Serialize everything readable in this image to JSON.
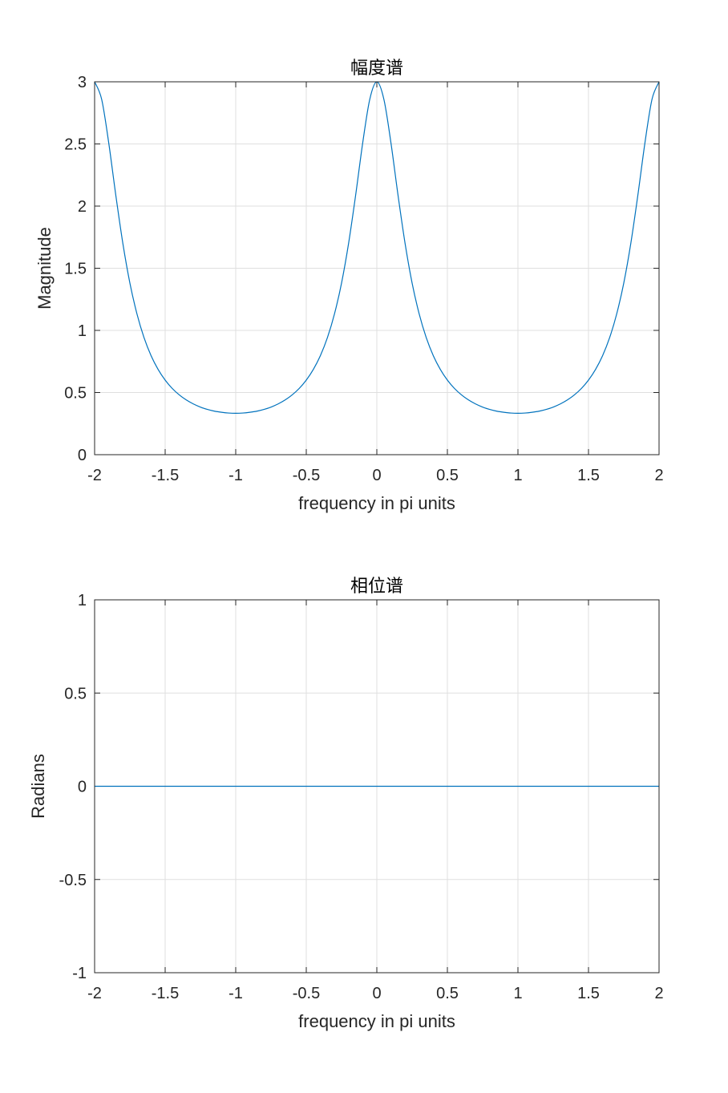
{
  "chart_data": [
    {
      "type": "line",
      "title": "幅度谱",
      "xlabel": "frequency in pi units",
      "ylabel": "Magnitude",
      "xlim": [
        -2,
        2
      ],
      "ylim": [
        0,
        3
      ],
      "xticks": [
        "-2",
        "-1.5",
        "-1",
        "-0.5",
        "0",
        "0.5",
        "1",
        "1.5",
        "2"
      ],
      "yticks": [
        "0",
        "0.5",
        "1",
        "1.5",
        "2",
        "2.5",
        "3"
      ],
      "grid": true,
      "line_color": "#0072BD",
      "x": [
        -2,
        -1.95,
        -1.9,
        -1.85,
        -1.8,
        -1.75,
        -1.7,
        -1.65,
        -1.6,
        -1.55,
        -1.5,
        -1.45,
        -1.4,
        -1.35,
        -1.3,
        -1.25,
        -1.2,
        -1.15,
        -1.1,
        -1.05,
        -1,
        -0.95,
        -0.9,
        -0.85,
        -0.8,
        -0.75,
        -0.7,
        -0.65,
        -0.6,
        -0.55,
        -0.5,
        -0.45,
        -0.4,
        -0.35,
        -0.3,
        -0.25,
        -0.2,
        -0.15,
        -0.1,
        -0.05,
        0,
        0.05,
        0.1,
        0.15,
        0.2,
        0.25,
        0.3,
        0.35,
        0.4,
        0.45,
        0.5,
        0.55,
        0.6,
        0.65,
        0.7,
        0.75,
        0.8,
        0.85,
        0.9,
        0.95,
        1,
        1.05,
        1.1,
        1.15,
        1.2,
        1.25,
        1.3,
        1.35,
        1.4,
        1.45,
        1.5,
        1.55,
        1.6,
        1.65,
        1.7,
        1.75,
        1.8,
        1.85,
        1.9,
        1.95,
        2
      ],
      "y": [
        3,
        2.859,
        2.509,
        2.089,
        1.701,
        1.381,
        1.133,
        0.942,
        0.797,
        0.686,
        0.6,
        0.533,
        0.481,
        0.44,
        0.408,
        0.383,
        0.364,
        0.35,
        0.341,
        0.335,
        0.333,
        0.335,
        0.341,
        0.35,
        0.364,
        0.383,
        0.408,
        0.44,
        0.481,
        0.533,
        0.6,
        0.686,
        0.797,
        0.942,
        1.133,
        1.381,
        1.701,
        2.089,
        2.509,
        2.859,
        3,
        2.859,
        2.509,
        2.089,
        1.701,
        1.381,
        1.133,
        0.942,
        0.797,
        0.686,
        0.6,
        0.533,
        0.481,
        0.44,
        0.408,
        0.383,
        0.364,
        0.35,
        0.341,
        0.335,
        0.333,
        0.335,
        0.341,
        0.35,
        0.364,
        0.383,
        0.408,
        0.44,
        0.481,
        0.533,
        0.6,
        0.686,
        0.797,
        0.942,
        1.133,
        1.381,
        1.701,
        2.089,
        2.509,
        2.859,
        3
      ]
    },
    {
      "type": "line",
      "title": "相位谱",
      "xlabel": "frequency in pi units",
      "ylabel": "Radians",
      "xlim": [
        -2,
        2
      ],
      "ylim": [
        -1,
        1
      ],
      "xticks": [
        "-2",
        "-1.5",
        "-1",
        "-0.5",
        "0",
        "0.5",
        "1",
        "1.5",
        "2"
      ],
      "yticks": [
        "-1",
        "-0.5",
        "0",
        "0.5",
        "1"
      ],
      "grid": true,
      "line_color": "#0072BD",
      "x": [
        -2,
        2
      ],
      "y": [
        0,
        0
      ]
    }
  ]
}
